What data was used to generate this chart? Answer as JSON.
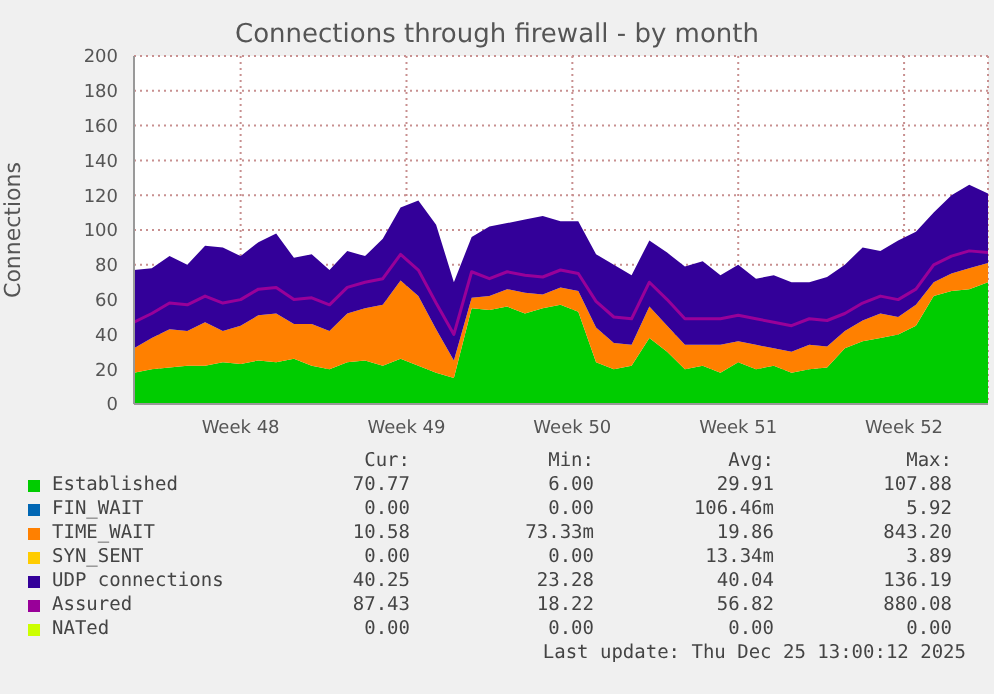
{
  "chart_data": {
    "type": "area",
    "title": "Connections through firewall - by month",
    "ylabel": "Connections",
    "stacked": true,
    "grid": true,
    "legend": "bottom",
    "ylim": [
      0,
      200
    ],
    "yticks": [
      0,
      20,
      40,
      60,
      80,
      100,
      120,
      140,
      160,
      180,
      200
    ],
    "xlim": [
      "2025-11-19T12:00",
      "2025-12-25T13:00"
    ],
    "xticks": [
      {
        "value": "2025-11-24",
        "label": "Week 48"
      },
      {
        "value": "2025-12-01",
        "label": "Week 49"
      },
      {
        "value": "2025-12-08",
        "label": "Week 50"
      },
      {
        "value": "2025-12-15",
        "label": "Week 51"
      },
      {
        "value": "2025-12-22",
        "label": "Week 52"
      }
    ],
    "x": [
      "2025-11-19T12:00",
      "2025-11-20T06:00",
      "2025-11-21T00:00",
      "2025-11-21T18:00",
      "2025-11-22T12:00",
      "2025-11-23T06:00",
      "2025-11-24T00:00",
      "2025-11-24T18:00",
      "2025-11-25T12:00",
      "2025-11-26T06:00",
      "2025-11-27T00:00",
      "2025-11-27T18:00",
      "2025-11-28T12:00",
      "2025-11-29T06:00",
      "2025-11-30T00:00",
      "2025-11-30T18:00",
      "2025-12-01T12:00",
      "2025-12-02T06:00",
      "2025-12-03T00:00",
      "2025-12-03T18:00",
      "2025-12-04T12:00",
      "2025-12-05T06:00",
      "2025-12-06T00:00",
      "2025-12-06T18:00",
      "2025-12-07T12:00",
      "2025-12-08T06:00",
      "2025-12-09T00:00",
      "2025-12-09T18:00",
      "2025-12-10T12:00",
      "2025-12-11T06:00",
      "2025-12-12T00:00",
      "2025-12-12T18:00",
      "2025-12-13T12:00",
      "2025-12-14T06:00",
      "2025-12-15T00:00",
      "2025-12-15T18:00",
      "2025-12-16T12:00",
      "2025-12-17T06:00",
      "2025-12-18T00:00",
      "2025-12-18T18:00",
      "2025-12-19T12:00",
      "2025-12-20T06:00",
      "2025-12-21T00:00",
      "2025-12-21T18:00",
      "2025-12-22T12:00",
      "2025-12-23T06:00",
      "2025-12-24T00:00",
      "2025-12-24T18:00",
      "2025-12-25T13:00"
    ],
    "series": [
      {
        "name": "Established",
        "color": "#00cc00",
        "values": [
          18,
          20,
          21,
          22,
          22,
          24,
          23,
          25,
          24,
          26,
          22,
          20,
          24,
          25,
          22,
          26,
          22,
          18,
          15,
          55,
          54,
          56,
          52,
          55,
          57,
          53,
          24,
          20,
          22,
          38,
          30,
          20,
          22,
          18,
          24,
          20,
          22,
          18,
          20,
          21,
          32,
          36,
          38,
          40,
          45,
          62,
          65,
          66,
          70
        ]
      },
      {
        "name": "FIN_WAIT",
        "color": "#0066b3",
        "values": [
          null,
          null,
          null,
          null,
          null,
          null,
          null,
          null,
          null,
          null,
          null,
          null,
          null,
          null,
          null,
          null,
          null,
          null,
          null,
          null,
          null,
          null,
          null,
          null,
          null,
          null,
          null,
          null,
          null,
          null,
          null,
          null,
          null,
          null,
          null,
          null,
          null,
          null,
          null,
          null,
          null,
          null,
          null,
          null,
          null,
          null,
          null,
          null,
          null
        ]
      },
      {
        "name": "TIME_WAIT",
        "color": "#ff8000",
        "values": [
          14,
          18,
          22,
          20,
          25,
          18,
          22,
          26,
          28,
          20,
          24,
          22,
          28,
          30,
          35,
          45,
          40,
          25,
          10,
          6,
          8,
          10,
          12,
          8,
          10,
          12,
          20,
          15,
          12,
          18,
          15,
          14,
          12,
          16,
          12,
          14,
          10,
          12,
          14,
          12,
          10,
          12,
          14,
          10,
          12,
          8,
          10,
          12,
          11
        ]
      },
      {
        "name": "SYN_SENT",
        "color": "#ffcc00",
        "values": [
          null,
          null,
          null,
          null,
          null,
          null,
          null,
          null,
          null,
          null,
          null,
          null,
          null,
          null,
          null,
          null,
          null,
          null,
          null,
          null,
          null,
          null,
          null,
          null,
          null,
          null,
          null,
          null,
          null,
          null,
          null,
          null,
          null,
          null,
          null,
          null,
          null,
          null,
          null,
          null,
          null,
          null,
          null,
          null,
          null,
          null,
          null,
          null,
          null
        ]
      },
      {
        "name": "UDP connections",
        "color": "#330099",
        "values": [
          45,
          40,
          42,
          38,
          44,
          48,
          40,
          42,
          46,
          38,
          40,
          35,
          36,
          30,
          38,
          42,
          55,
          60,
          45,
          35,
          40,
          38,
          42,
          45,
          38,
          40,
          42,
          45,
          40,
          38,
          42,
          45,
          48,
          40,
          44,
          38,
          42,
          40,
          36,
          40,
          38,
          42,
          36,
          44,
          42,
          40,
          45,
          48,
          40
        ]
      },
      {
        "name": "Assured",
        "type": "line",
        "color": "#990099",
        "values": [
          47,
          52,
          58,
          57,
          62,
          58,
          60,
          66,
          67,
          60,
          61,
          57,
          67,
          70,
          72,
          86,
          77,
          58,
          40,
          76,
          72,
          76,
          74,
          73,
          77,
          75,
          59,
          50,
          49,
          70,
          60,
          49,
          49,
          49,
          51,
          49,
          47,
          45,
          49,
          48,
          52,
          58,
          62,
          60,
          66,
          80,
          85,
          88,
          87
        ]
      },
      {
        "name": "NATed",
        "type": "line",
        "color": "#ccff00",
        "values": [
          null,
          null,
          null,
          null,
          null,
          null,
          null,
          null,
          null,
          null,
          null,
          null,
          null,
          null,
          null,
          null,
          null,
          null,
          null,
          null,
          null,
          null,
          null,
          null,
          null,
          null,
          null,
          null,
          null,
          null,
          null,
          null,
          null,
          null,
          null,
          null,
          null,
          null,
          null,
          null,
          null,
          null,
          null,
          null,
          null,
          null,
          null,
          null,
          null
        ]
      }
    ],
    "annotations": [
      "Cur:",
      "Min:",
      "Avg:",
      "Max:",
      "70.77",
      "6.00",
      "29.91",
      "107.88",
      "0.00",
      "0.00",
      "106.46m",
      "5.92",
      "10.58",
      "73.33m",
      "19.86",
      "843.20",
      "0.00",
      "0.00",
      "13.34m",
      "3.89",
      "40.25",
      "23.28",
      "40.04",
      "136.19",
      "87.43",
      "18.22",
      "56.82",
      "880.08",
      "0.00",
      "0.00",
      "0.00",
      "0.00",
      "Last update: Thu Dec 25 13:00:12 2025"
    ]
  }
}
